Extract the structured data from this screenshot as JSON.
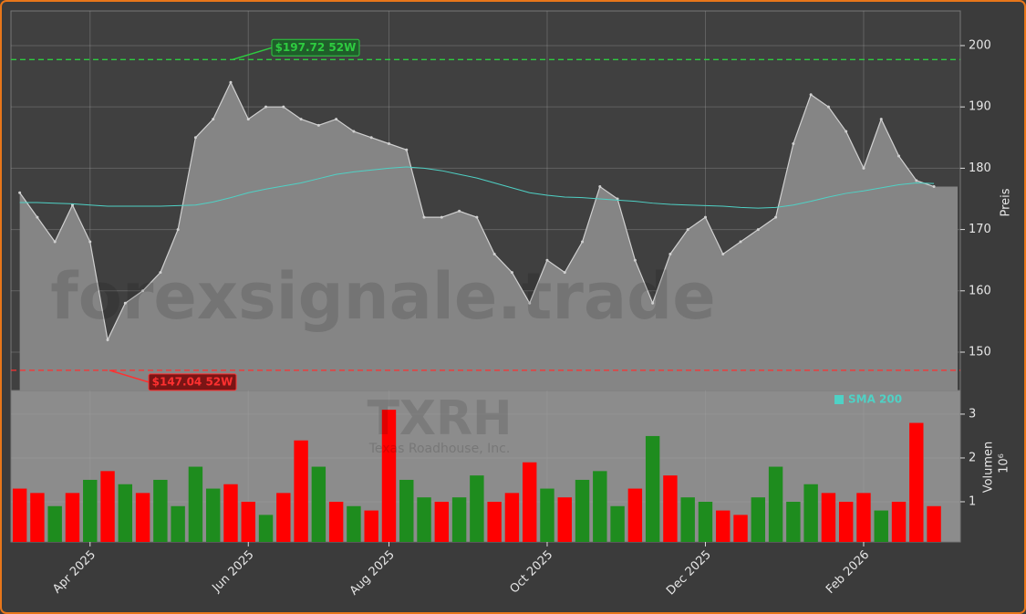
{
  "chart_data": [
    {
      "type": "area",
      "y_label": "Preis",
      "watermark": "forexsignale.trade",
      "ylim": [
        143.75,
        205.65
      ],
      "yticks": [
        150,
        160,
        170,
        180,
        190,
        200
      ],
      "grid": true,
      "color": "#d0d0d0",
      "fill": "#858585",
      "values": [
        176,
        172,
        168,
        174,
        168,
        152,
        158,
        160,
        163,
        170,
        185,
        188,
        194,
        188,
        190,
        190,
        188,
        187,
        188,
        186,
        185,
        184,
        183,
        172,
        172,
        173,
        172,
        166,
        163,
        158,
        165,
        163,
        168,
        177,
        175,
        165,
        158,
        166,
        170,
        172,
        166,
        168,
        170,
        172,
        184,
        192,
        190,
        186,
        180,
        188,
        182,
        178,
        177
      ],
      "sma": {
        "name": "SMA 200",
        "color": "#4fd1c5",
        "values": [
          174.4,
          174.4,
          174.3,
          174.2,
          174.0,
          173.8,
          173.8,
          173.8,
          173.8,
          173.9,
          174.0,
          174.5,
          175.2,
          176.0,
          176.6,
          177.1,
          177.6,
          178.3,
          179.0,
          179.4,
          179.7,
          180.0,
          180.2,
          180.0,
          179.6,
          179.0,
          178.4,
          177.6,
          176.8,
          176.0,
          175.6,
          175.3,
          175.2,
          175.0,
          174.8,
          174.6,
          174.3,
          174.1,
          174.0,
          173.9,
          173.8,
          173.6,
          173.5,
          173.6,
          174.0,
          174.6,
          175.3,
          175.9,
          176.3,
          176.8,
          177.3,
          177.6,
          177.5
        ]
      },
      "annotations": [
        {
          "value": 197.72,
          "label": "$197.72 52W",
          "color": "#2ecc40",
          "box": "#1f5e2a"
        },
        {
          "value": 147.04,
          "label": "$147.04 52W",
          "color": "#ff3030",
          "box": "#7a1515"
        }
      ]
    },
    {
      "type": "bar",
      "title": "TXRH",
      "subtitle": "Texas Roadhouse, Inc.",
      "y_label": "Volumen",
      "y_scale_label": "10⁶",
      "ylim": [
        0.083,
        3.54
      ],
      "yticks": [
        1,
        2,
        3
      ],
      "categories": [
        null,
        null,
        null,
        null,
        "Apr 2025",
        null,
        null,
        null,
        null,
        null,
        null,
        null,
        null,
        "Jun 2025",
        null,
        null,
        null,
        null,
        null,
        null,
        null,
        "Aug 2025",
        null,
        null,
        null,
        null,
        null,
        null,
        null,
        null,
        "Oct 2025",
        null,
        null,
        null,
        null,
        null,
        null,
        null,
        null,
        "Dec 2025",
        null,
        null,
        null,
        null,
        null,
        null,
        null,
        null,
        "Feb 2026",
        null,
        null,
        null,
        null
      ],
      "values": [
        1.3,
        1.2,
        0.9,
        1.2,
        1.5,
        1.7,
        1.4,
        1.2,
        1.5,
        0.9,
        1.8,
        1.3,
        1.4,
        1.0,
        0.7,
        1.2,
        2.4,
        1.8,
        1.0,
        0.9,
        0.8,
        3.1,
        1.5,
        1.1,
        1.0,
        1.1,
        1.6,
        1.0,
        1.2,
        1.9,
        1.3,
        1.1,
        1.5,
        1.7,
        0.9,
        1.3,
        2.5,
        1.6,
        1.1,
        1.0,
        0.8,
        0.7,
        1.1,
        1.8,
        1.0,
        1.4,
        1.2,
        1.0,
        1.2,
        0.8,
        1.0,
        2.8,
        0.9
      ],
      "colors": [
        "#ff0000",
        "#ff0000",
        "#1e8c1e",
        "#ff0000",
        "#1e8c1e",
        "#ff0000",
        "#1e8c1e",
        "#ff0000",
        "#1e8c1e",
        "#1e8c1e",
        "#1e8c1e",
        "#1e8c1e",
        "#ff0000",
        "#ff0000",
        "#1e8c1e",
        "#ff0000",
        "#ff0000",
        "#1e8c1e",
        "#ff0000",
        "#1e8c1e",
        "#ff0000",
        "#ff0000",
        "#1e8c1e",
        "#1e8c1e",
        "#ff0000",
        "#1e8c1e",
        "#1e8c1e",
        "#ff0000",
        "#ff0000",
        "#ff0000",
        "#1e8c1e",
        "#ff0000",
        "#1e8c1e",
        "#1e8c1e",
        "#1e8c1e",
        "#ff0000",
        "#1e8c1e",
        "#ff0000",
        "#1e8c1e",
        "#1e8c1e",
        "#ff0000",
        "#ff0000",
        "#1e8c1e",
        "#1e8c1e",
        "#1e8c1e",
        "#1e8c1e",
        "#ff0000",
        "#ff0000",
        "#ff0000",
        "#1e8c1e",
        "#ff0000",
        "#ff0000",
        "#ff0000"
      ]
    }
  ]
}
